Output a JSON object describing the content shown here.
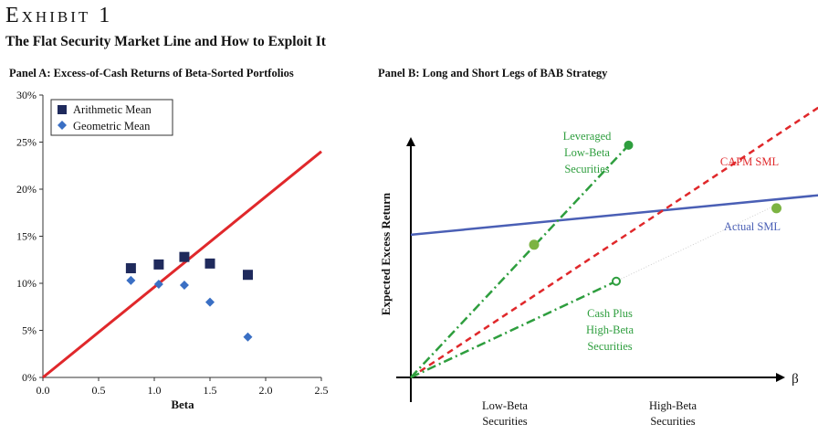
{
  "header": {
    "exhibit": "Exhibit 1",
    "subtitle": "The Flat Security Market Line and How to Exploit It"
  },
  "panel_a": {
    "title": "Panel A: Excess-of-Cash Returns of Beta-Sorted Portfolios"
  },
  "panel_b": {
    "title": "Panel B: Long and Short Legs of BAB Strategy"
  },
  "colors": {
    "navy": "#1f2a5c",
    "blue_marker": "#3a6fc4",
    "red": "#e0282b",
    "sml_blue": "#4a5fb5",
    "green": "#2e9e3e",
    "green_marker": "#7cb342"
  },
  "chart_data": [
    {
      "type": "scatter",
      "title": "Panel A: Excess-of-Cash Returns of Beta-Sorted Portfolios",
      "xlabel": "Beta",
      "ylabel": "",
      "xlim": [
        0,
        2.5
      ],
      "ylim": [
        0,
        30
      ],
      "x_ticks": [
        "0.0",
        "0.5",
        "1.0",
        "1.5",
        "2.0",
        "2.5"
      ],
      "y_ticks": [
        "0%",
        "5%",
        "10%",
        "15%",
        "20%",
        "25%",
        "30%"
      ],
      "legend": "top-left",
      "series": [
        {
          "name": "Arithmetic Mean",
          "marker": "square",
          "points": [
            [
              0.79,
              11.6
            ],
            [
              1.04,
              12.0
            ],
            [
              1.27,
              12.8
            ],
            [
              1.5,
              12.1
            ],
            [
              1.84,
              10.9
            ]
          ]
        },
        {
          "name": "Geometric Mean",
          "marker": "diamond",
          "points": [
            [
              0.79,
              10.3
            ],
            [
              1.04,
              9.9
            ],
            [
              1.27,
              9.8
            ],
            [
              1.5,
              8.0
            ],
            [
              1.84,
              4.3
            ]
          ]
        }
      ],
      "line": {
        "name": "CAPM line",
        "points": [
          [
            0,
            0
          ],
          [
            2.5,
            24
          ]
        ]
      }
    },
    {
      "type": "line",
      "title": "Panel B: Long and Short Legs of BAB Strategy",
      "xlabel": "β",
      "ylabel": "Expected Excess Return",
      "x_categories": [
        "Low-Beta Securities",
        "High-Beta Securities"
      ],
      "series": [
        {
          "name": "Actual SML",
          "style": "solid",
          "points": [
            [
              0,
              0.43
            ],
            [
              1.0,
              0.55
            ]
          ]
        },
        {
          "name": "CAPM SML",
          "style": "dashed",
          "points": [
            [
              0,
              0
            ],
            [
              1.0,
              0.82
            ]
          ]
        },
        {
          "name": "Leveraged Low-Beta Securities",
          "style": "dash-dot",
          "points": [
            [
              0,
              0
            ],
            [
              0.53,
              0.7
            ]
          ]
        },
        {
          "name": "Cash Plus High-Beta Securities",
          "style": "dash-dot",
          "points": [
            [
              0,
              0
            ],
            [
              0.5,
              0.29
            ]
          ]
        },
        {
          "name": "Cash Plus High-Beta Securities (extension)",
          "style": "dotted",
          "points": [
            [
              0.5,
              0.29
            ],
            [
              0.89,
              0.52
            ]
          ]
        }
      ],
      "points": [
        {
          "name": "Low-Beta Securities",
          "x": 0.3,
          "y": 0.4
        },
        {
          "name": "High-Beta Securities",
          "x": 0.89,
          "y": 0.51
        }
      ],
      "labels": {
        "leveraged": [
          "Leveraged",
          "Low-Beta",
          "Securities"
        ],
        "capm": "CAPM SML",
        "actual": "Actual SML",
        "cash": [
          "Cash Plus",
          "High-Beta",
          "Securities"
        ],
        "low_beta_axis": [
          "Low-Beta",
          "Securities"
        ],
        "high_beta_axis": [
          "High-Beta",
          "Securities"
        ]
      }
    }
  ]
}
